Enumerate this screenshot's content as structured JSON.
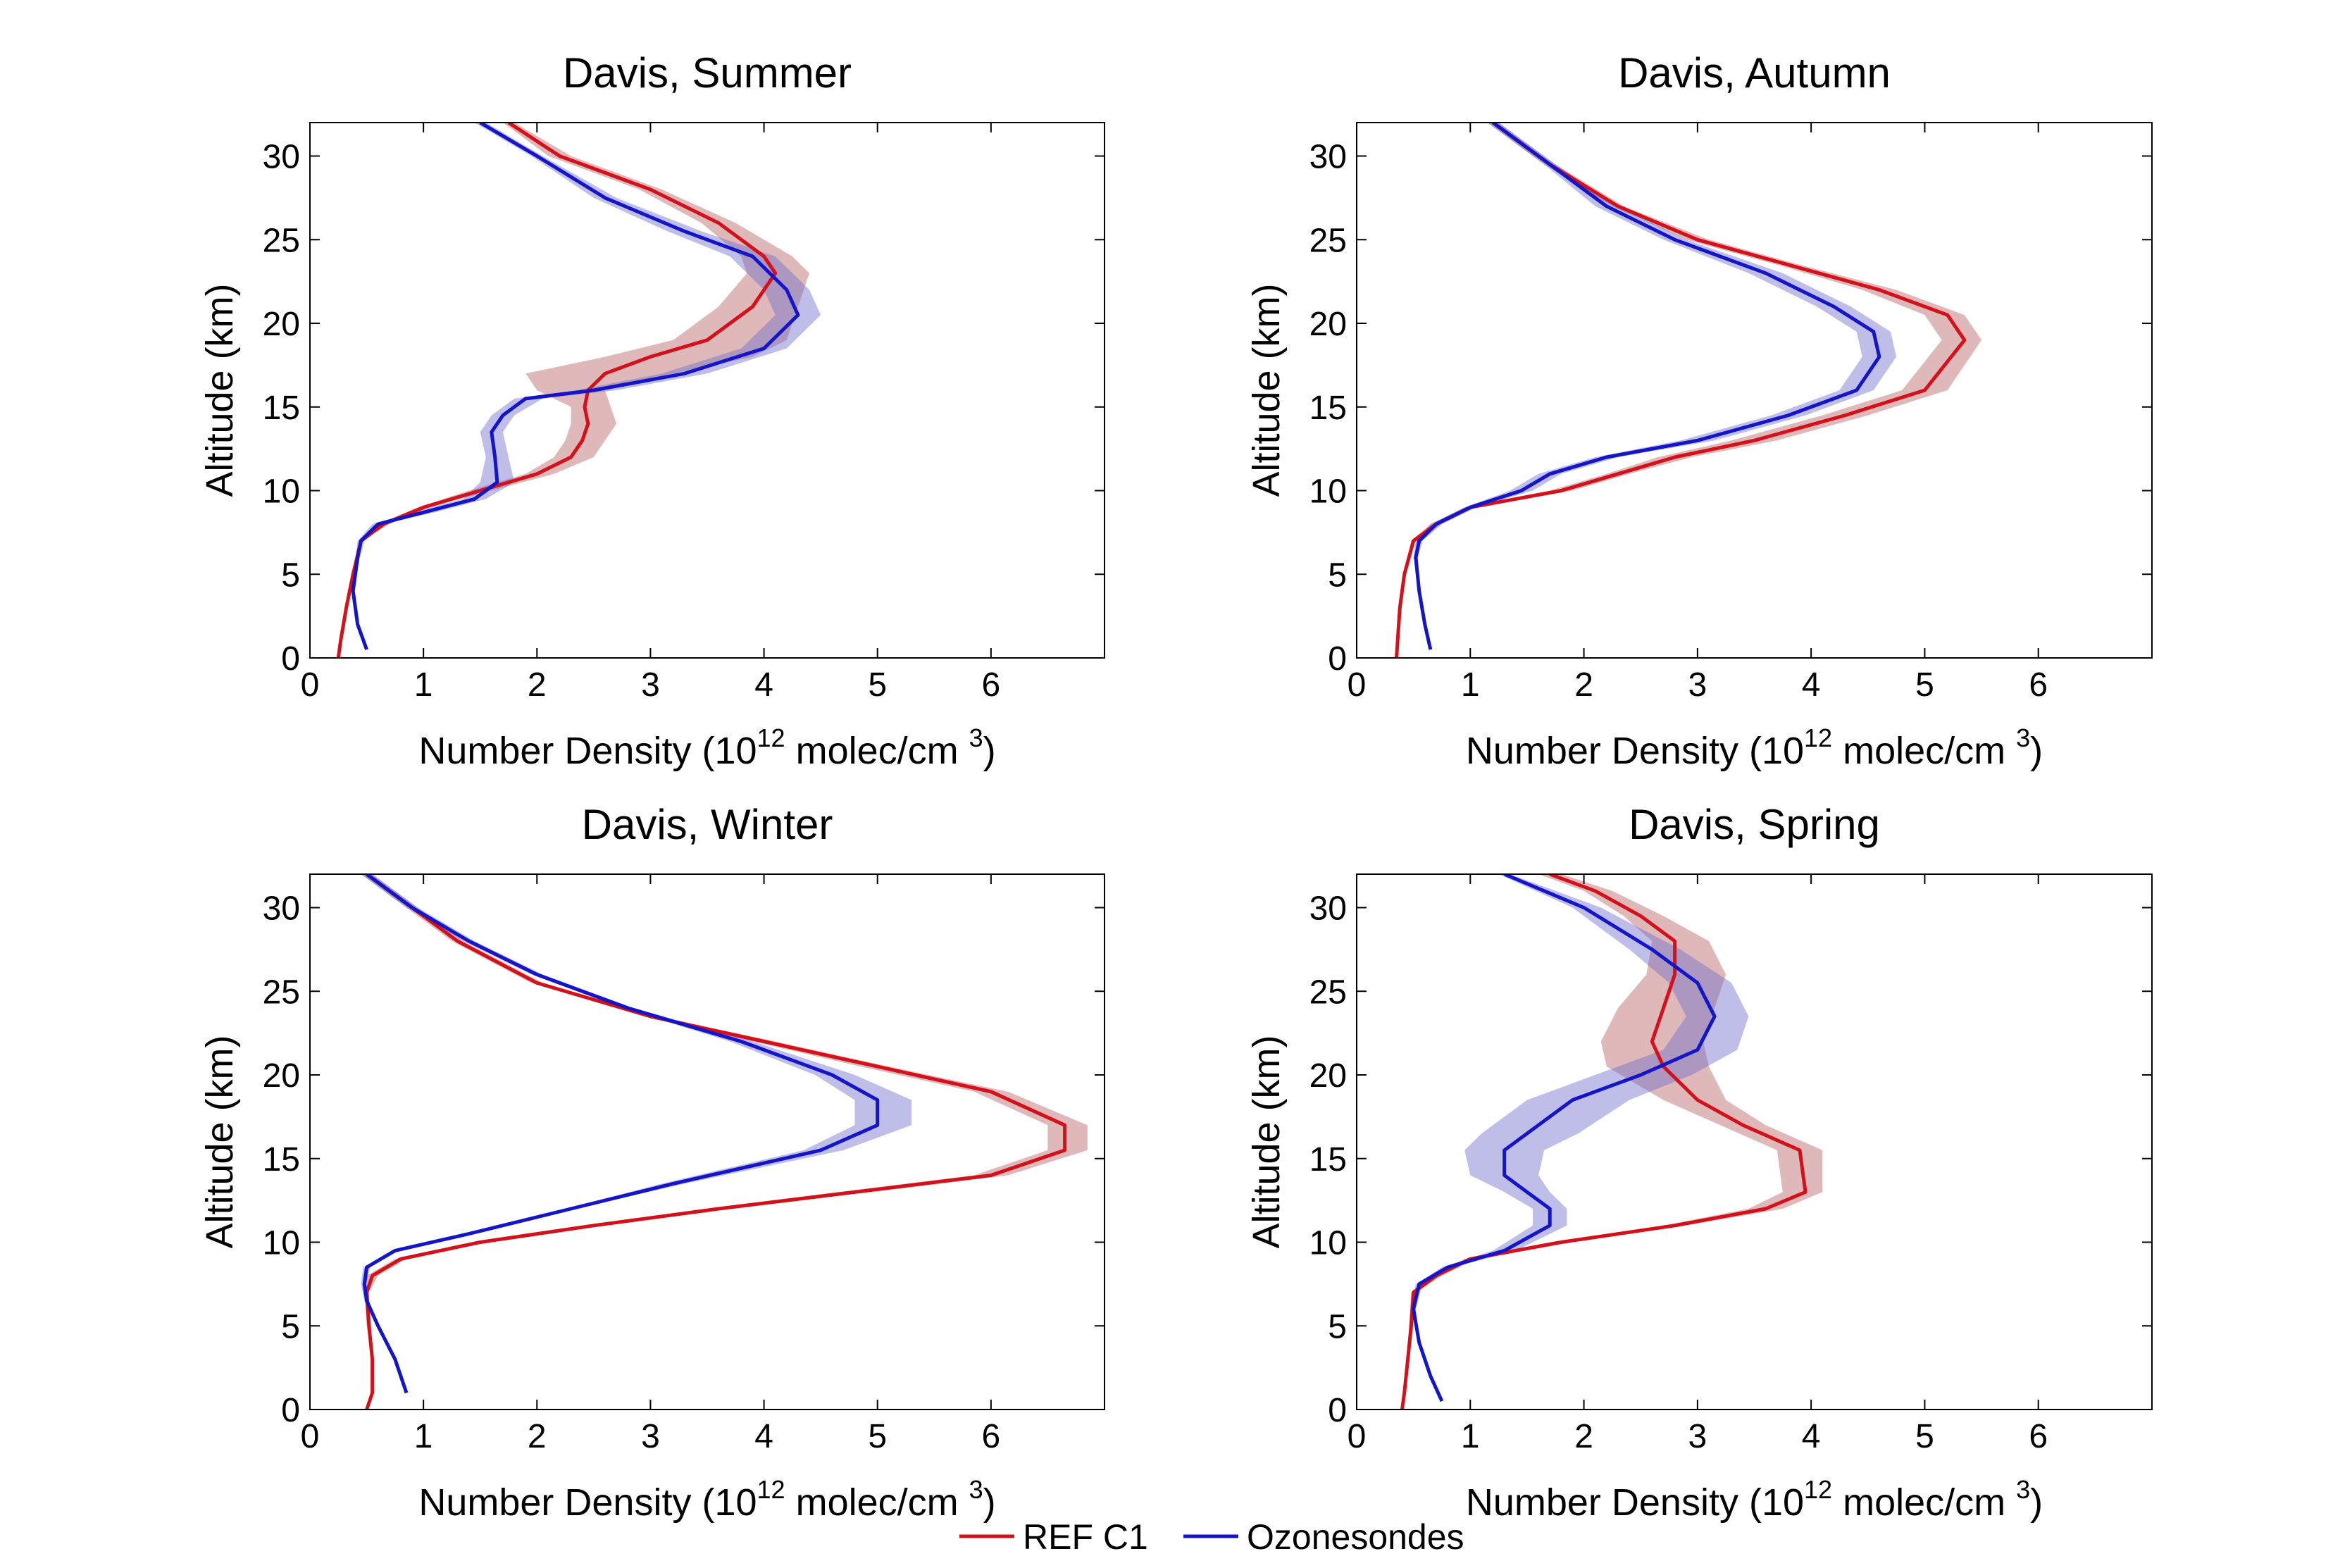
{
  "chart_data": [
    {
      "type": "line",
      "title": "Davis, Summer",
      "xlabel": {
        "prefix": "Number Density (10",
        "sup1": "12",
        "mid": " molec/cm ",
        "sup2": "3",
        "suffix": ")"
      },
      "ylabel": "Altitude (km)",
      "xlim": [
        0,
        7
      ],
      "ylim": [
        0,
        32
      ],
      "xticks": [
        "0",
        "1",
        "2",
        "3",
        "4",
        "5",
        "6"
      ],
      "yticks": [
        "0",
        "5",
        "10",
        "15",
        "20",
        "25",
        "30"
      ],
      "series": [
        {
          "name": "REF C1",
          "color": "#d4101b",
          "band_color": "#b86464",
          "x": [
            0.25,
            0.27,
            0.32,
            0.38,
            0.45,
            0.65,
            1.0,
            1.5,
            2.0,
            2.3,
            2.4,
            2.45,
            2.42,
            2.45,
            2.6,
            3.0,
            3.5,
            3.9,
            4.1,
            4.0,
            3.6,
            3.0,
            2.2,
            1.75
          ],
          "y": [
            0,
            1,
            3,
            5,
            7,
            8,
            9,
            10,
            11,
            12,
            13,
            14,
            15,
            16,
            17,
            18,
            19,
            21,
            23,
            24,
            26,
            28,
            30,
            32
          ],
          "lo": [
            0.25,
            0.27,
            0.32,
            0.38,
            0.45,
            0.6,
            0.95,
            1.4,
            1.9,
            2.15,
            2.25,
            2.3,
            2.3,
            2.0,
            1.9,
            2.6,
            3.2,
            3.6,
            3.85,
            3.8,
            3.45,
            2.9,
            2.1,
            1.7
          ],
          "hi": [
            0.25,
            0.27,
            0.32,
            0.38,
            0.45,
            0.7,
            1.05,
            1.6,
            2.15,
            2.5,
            2.6,
            2.7,
            2.65,
            2.6,
            3.2,
            3.9,
            4.2,
            4.3,
            4.4,
            4.25,
            3.75,
            3.1,
            2.3,
            1.8
          ]
        },
        {
          "name": "Ozonesondes",
          "color": "#1414c8",
          "band_color": "#6e6ecc",
          "x": [
            0.5,
            0.42,
            0.38,
            0.42,
            0.45,
            0.6,
            1.0,
            1.45,
            1.65,
            1.63,
            1.6,
            1.7,
            1.9,
            2.5,
            3.3,
            4.0,
            4.3,
            4.2,
            3.9,
            3.3,
            2.6,
            2.0,
            1.5
          ],
          "y": [
            0.5,
            2,
            4,
            6,
            7,
            8,
            8.7,
            9.5,
            10.5,
            12,
            13.5,
            14.5,
            15.5,
            16,
            17,
            18.5,
            20.5,
            22,
            24,
            25.5,
            27.5,
            30,
            32
          ],
          "lo": [
            0.5,
            0.42,
            0.38,
            0.4,
            0.42,
            0.55,
            0.9,
            1.35,
            1.5,
            1.55,
            1.5,
            1.6,
            1.8,
            2.35,
            3.1,
            3.8,
            4.1,
            4.0,
            3.7,
            3.15,
            2.5,
            1.95,
            1.45
          ],
          "hi": [
            0.5,
            0.42,
            0.38,
            0.44,
            0.48,
            0.65,
            1.1,
            1.55,
            1.8,
            1.75,
            1.7,
            1.8,
            2.05,
            2.7,
            3.5,
            4.2,
            4.5,
            4.4,
            4.1,
            3.45,
            2.7,
            2.05,
            1.55
          ]
        }
      ]
    },
    {
      "type": "line",
      "title": "Davis, Autumn",
      "xlabel": {
        "prefix": "Number Density (10",
        "sup1": "12",
        "mid": " molec/cm ",
        "sup2": "3",
        "suffix": ")"
      },
      "ylabel": "Altitude (km)",
      "xlim": [
        0,
        7
      ],
      "ylim": [
        0,
        32
      ],
      "xticks": [
        "0",
        "1",
        "2",
        "3",
        "4",
        "5",
        "6"
      ],
      "yticks": [
        "0",
        "5",
        "10",
        "15",
        "20",
        "25",
        "30"
      ],
      "series": [
        {
          "name": "REF C1",
          "color": "#d4101b",
          "band_color": "#b86464",
          "x": [
            0.35,
            0.36,
            0.38,
            0.42,
            0.5,
            0.7,
            1.0,
            1.8,
            2.3,
            2.8,
            3.5,
            4.3,
            5.0,
            5.35,
            5.2,
            4.6,
            3.8,
            3.0,
            2.3,
            1.7,
            1.2
          ],
          "y": [
            0,
            1,
            3,
            5,
            7,
            8,
            9,
            10,
            11,
            12,
            13,
            14.5,
            16,
            19,
            20.5,
            22,
            23.5,
            25,
            27,
            29.5,
            32
          ],
          "lo": [
            0.35,
            0.36,
            0.38,
            0.42,
            0.48,
            0.65,
            0.95,
            1.7,
            2.2,
            2.65,
            3.3,
            4.1,
            4.8,
            5.15,
            5.0,
            4.45,
            3.7,
            2.9,
            2.25,
            1.65,
            1.15
          ],
          "hi": [
            0.35,
            0.36,
            0.38,
            0.42,
            0.52,
            0.75,
            1.05,
            1.9,
            2.4,
            2.95,
            3.7,
            4.5,
            5.2,
            5.5,
            5.35,
            4.75,
            3.9,
            3.1,
            2.35,
            1.75,
            1.25
          ]
        },
        {
          "name": "Ozonesondes",
          "color": "#1414c8",
          "band_color": "#6e6ecc",
          "x": [
            0.65,
            0.6,
            0.55,
            0.52,
            0.55,
            0.7,
            1.0,
            1.45,
            1.7,
            2.2,
            3.0,
            3.8,
            4.4,
            4.6,
            4.55,
            4.2,
            3.6,
            2.8,
            2.2,
            1.7,
            1.2
          ],
          "y": [
            0.5,
            2,
            4,
            6,
            7,
            8,
            9,
            10,
            11,
            12,
            13,
            14.5,
            16,
            18,
            19.5,
            21,
            23,
            25,
            27,
            29.5,
            32
          ],
          "lo": [
            0.65,
            0.6,
            0.55,
            0.5,
            0.52,
            0.65,
            0.95,
            1.35,
            1.6,
            2.1,
            2.85,
            3.65,
            4.25,
            4.45,
            4.4,
            4.05,
            3.45,
            2.7,
            2.1,
            1.65,
            1.15
          ],
          "hi": [
            0.65,
            0.6,
            0.55,
            0.54,
            0.58,
            0.75,
            1.05,
            1.55,
            1.8,
            2.3,
            3.15,
            3.95,
            4.55,
            4.75,
            4.7,
            4.35,
            3.75,
            2.9,
            2.3,
            1.75,
            1.25
          ]
        }
      ]
    },
    {
      "type": "line",
      "title": "Davis, Winter",
      "xlabel": {
        "prefix": "Number Density (10",
        "sup1": "12",
        "mid": " molec/cm ",
        "sup2": "3",
        "suffix": ")"
      },
      "ylabel": "Altitude (km)",
      "xlim": [
        0,
        7
      ],
      "ylim": [
        0,
        32
      ],
      "xticks": [
        "0",
        "1",
        "2",
        "3",
        "4",
        "5",
        "6"
      ],
      "yticks": [
        "0",
        "5",
        "10",
        "15",
        "20",
        "25",
        "30"
      ],
      "series": [
        {
          "name": "REF C1",
          "color": "#d4101b",
          "band_color": "#b86464",
          "x": [
            0.5,
            0.55,
            0.55,
            0.52,
            0.5,
            0.55,
            0.8,
            1.5,
            2.5,
            3.6,
            4.8,
            6.0,
            6.65,
            6.65,
            6.0,
            5.0,
            4.0,
            3.0,
            2.0,
            1.3,
            0.9,
            0.5
          ],
          "y": [
            0,
            1,
            3,
            5,
            7,
            8,
            9,
            10,
            11,
            12,
            13,
            14,
            15.5,
            17,
            19,
            20.5,
            22,
            23.5,
            25.5,
            28,
            30,
            32
          ],
          "lo": [
            0.5,
            0.55,
            0.55,
            0.5,
            0.48,
            0.5,
            0.75,
            1.45,
            2.4,
            3.5,
            4.65,
            5.85,
            6.5,
            6.5,
            5.85,
            4.85,
            3.9,
            2.95,
            1.95,
            1.25,
            0.85,
            0.45
          ],
          "hi": [
            0.5,
            0.55,
            0.55,
            0.54,
            0.52,
            0.6,
            0.85,
            1.55,
            2.6,
            3.7,
            4.95,
            6.15,
            6.85,
            6.85,
            6.15,
            5.1,
            4.1,
            3.05,
            2.05,
            1.35,
            0.95,
            0.55
          ]
        },
        {
          "name": "Ozonesondes",
          "color": "#1414c8",
          "band_color": "#6e6ecc",
          "x": [
            0.85,
            0.75,
            0.6,
            0.5,
            0.48,
            0.5,
            0.75,
            1.4,
            2.3,
            3.2,
            4.5,
            5.0,
            5.0,
            4.6,
            3.8,
            2.8,
            2.0,
            1.4,
            0.9,
            0.5
          ],
          "y": [
            1,
            3,
            5,
            6.5,
            7.5,
            8.5,
            9.5,
            10.5,
            12,
            13.5,
            15.5,
            17,
            18.5,
            20,
            22,
            24,
            26,
            28,
            30,
            32
          ],
          "lo": [
            0.85,
            0.75,
            0.6,
            0.48,
            0.45,
            0.47,
            0.72,
            1.35,
            2.25,
            3.1,
            4.35,
            4.8,
            4.8,
            4.45,
            3.7,
            2.75,
            1.95,
            1.35,
            0.85,
            0.45
          ],
          "hi": [
            0.85,
            0.75,
            0.6,
            0.52,
            0.5,
            0.53,
            0.78,
            1.45,
            2.35,
            3.3,
            4.7,
            5.3,
            5.3,
            4.8,
            3.9,
            2.85,
            2.05,
            1.45,
            0.95,
            0.55
          ]
        }
      ]
    },
    {
      "type": "line",
      "title": "Davis, Spring",
      "xlabel": {
        "prefix": "Number Density (10",
        "sup1": "12",
        "mid": " molec/cm ",
        "sup2": "3",
        "suffix": ")"
      },
      "ylabel": "Altitude (km)",
      "xlim": [
        0,
        7
      ],
      "ylim": [
        0,
        32
      ],
      "xticks": [
        "0",
        "1",
        "2",
        "3",
        "4",
        "5",
        "6"
      ],
      "yticks": [
        "0",
        "5",
        "10",
        "15",
        "20",
        "25",
        "30"
      ],
      "series": [
        {
          "name": "REF C1",
          "color": "#d4101b",
          "band_color": "#b86464",
          "x": [
            0.4,
            0.42,
            0.45,
            0.48,
            0.5,
            0.7,
            1.0,
            1.8,
            2.8,
            3.6,
            3.95,
            3.9,
            3.4,
            3.0,
            2.7,
            2.6,
            2.7,
            2.8,
            2.8,
            2.5,
            2.1,
            1.7
          ],
          "y": [
            0,
            1,
            3,
            5,
            7,
            8,
            9,
            10,
            11,
            12,
            13,
            15.5,
            17,
            18.5,
            20.5,
            22,
            24,
            26,
            28,
            29.5,
            31,
            32
          ],
          "lo": [
            0.4,
            0.42,
            0.45,
            0.46,
            0.48,
            0.65,
            0.95,
            1.7,
            2.7,
            3.45,
            3.75,
            3.7,
            3.2,
            2.7,
            2.2,
            2.15,
            2.3,
            2.55,
            2.6,
            2.35,
            2.0,
            1.6
          ],
          "hi": [
            0.4,
            0.42,
            0.45,
            0.5,
            0.52,
            0.75,
            1.05,
            1.9,
            2.9,
            3.75,
            4.1,
            4.1,
            3.6,
            3.25,
            3.1,
            3.05,
            3.15,
            3.25,
            3.1,
            2.7,
            2.25,
            1.8
          ]
        },
        {
          "name": "Ozonesondes",
          "color": "#1414c8",
          "band_color": "#6e6ecc",
          "x": [
            0.75,
            0.65,
            0.55,
            0.5,
            0.55,
            0.8,
            1.3,
            1.7,
            1.7,
            1.5,
            1.3,
            1.3,
            1.5,
            1.9,
            2.5,
            3.0,
            3.15,
            3.0,
            2.6,
            2.0,
            1.3
          ],
          "y": [
            0.5,
            2,
            4,
            6,
            7.5,
            8.5,
            9.5,
            11,
            12,
            13,
            14,
            15.5,
            16.5,
            18.5,
            20,
            21.5,
            23.5,
            25.5,
            27.5,
            30,
            32
          ],
          "lo": [
            0.75,
            0.65,
            0.55,
            0.48,
            0.52,
            0.75,
            1.2,
            1.55,
            1.55,
            1.3,
            1.0,
            0.95,
            1.1,
            1.5,
            2.1,
            2.7,
            2.9,
            2.75,
            2.4,
            1.9,
            1.25
          ],
          "hi": [
            0.75,
            0.65,
            0.55,
            0.52,
            0.58,
            0.85,
            1.4,
            1.85,
            1.85,
            1.7,
            1.6,
            1.65,
            1.95,
            2.4,
            2.95,
            3.35,
            3.45,
            3.3,
            2.85,
            2.15,
            1.35
          ]
        }
      ]
    }
  ],
  "legend": {
    "items": [
      {
        "label": "REF C1",
        "color": "#d4101b"
      },
      {
        "label": "Ozonesondes",
        "color": "#1414c8"
      }
    ]
  }
}
